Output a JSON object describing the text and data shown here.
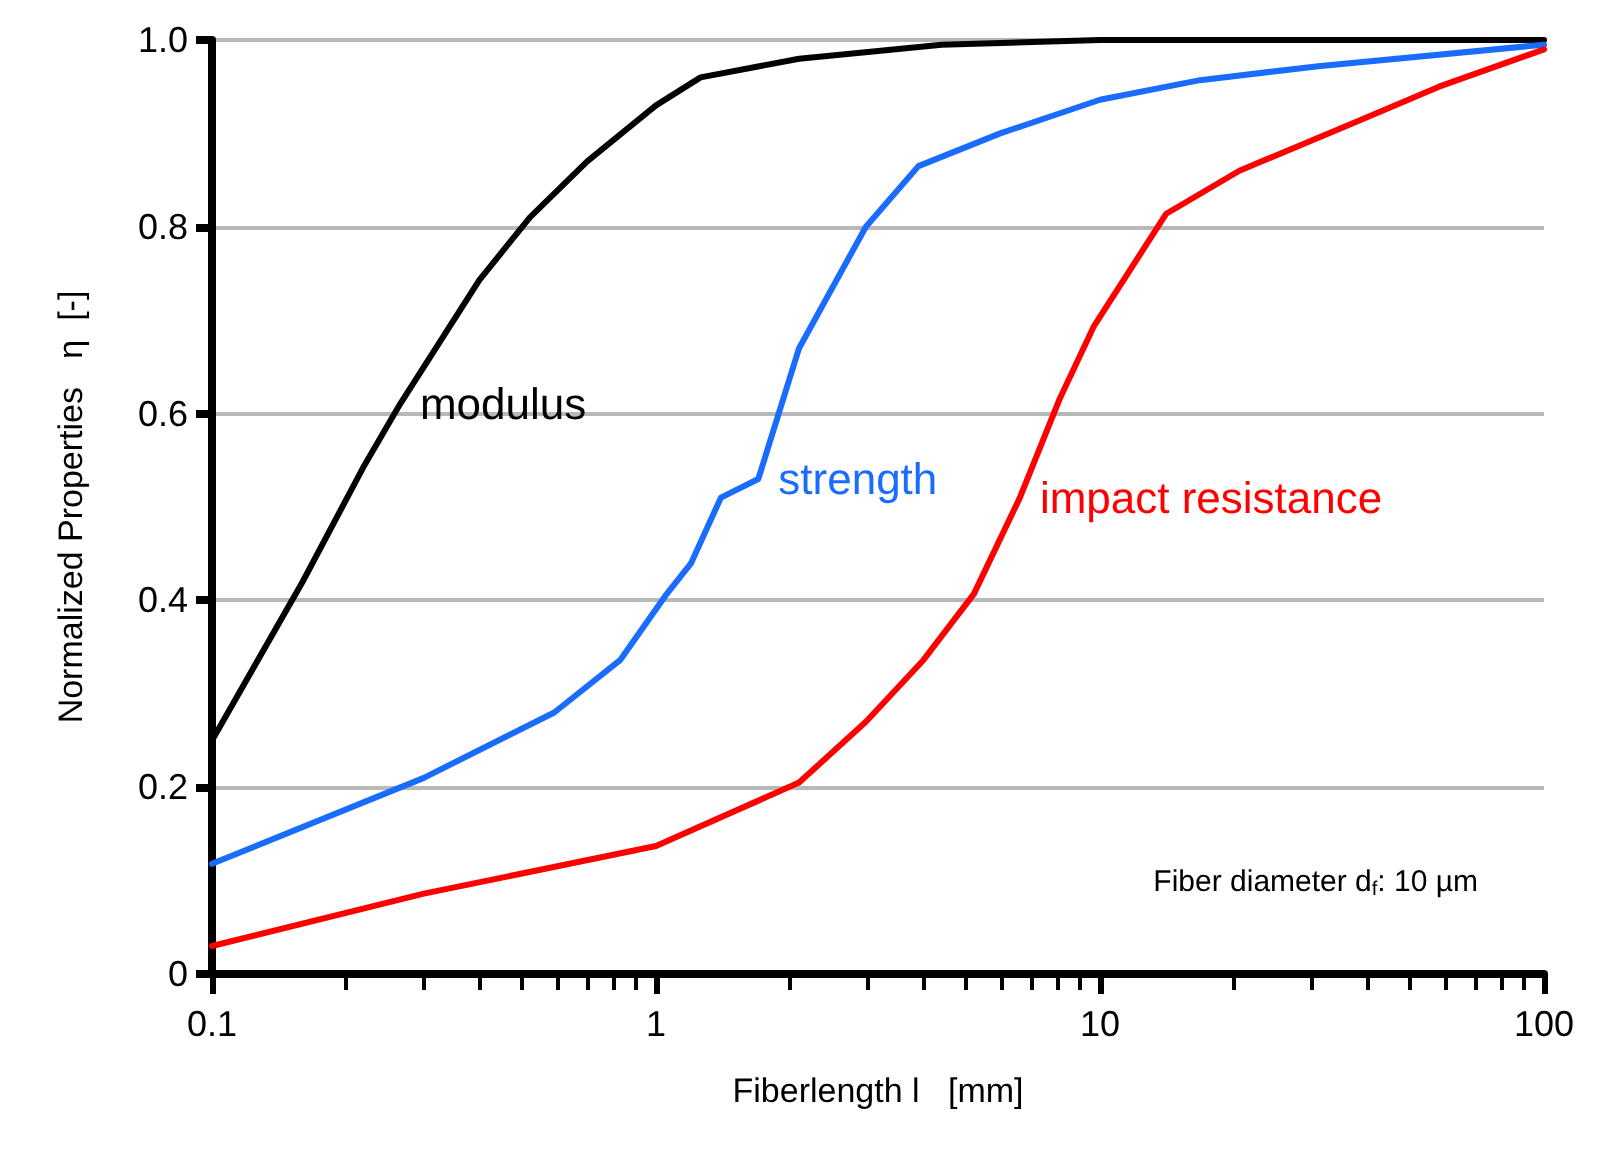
{
  "chart_data": {
    "type": "line",
    "xlabel": "Fiberlength l   [mm]",
    "ylabel": "Normalized Properties   η  [-]",
    "log": "x",
    "xlim": [
      0.1,
      100
    ],
    "xticks": [
      0.1,
      1,
      10,
      100
    ],
    "ylim": [
      0,
      1
    ],
    "yticks": [
      0,
      0.2,
      0.4,
      0.6,
      0.8,
      {
        "value": 1,
        "label": "1.0"
      }
    ],
    "grid": "y",
    "marker": "none",
    "line_style": "solid",
    "annotations": [
      "Fiber diameter d$_{f}$: 10 µm"
    ],
    "series": [
      {
        "name": "modulus",
        "color": "#000000",
        "x": [
          0.1,
          0.16,
          0.22,
          0.265,
          0.4,
          0.52,
          0.7,
          1,
          1.26,
          2.1,
          4.4,
          10,
          100
        ],
        "values": [
          0.25,
          0.42,
          0.544,
          0.61,
          0.743,
          0.81,
          0.87,
          0.93,
          0.96,
          0.98,
          0.995,
          1.0,
          1.0
        ]
      },
      {
        "name": "strength",
        "color": "#1a6cff",
        "x": [
          0.1,
          0.3,
          0.59,
          0.83,
          1.05,
          1.2,
          1.4,
          1.7,
          2.1,
          2.97,
          3.9,
          5.96,
          10,
          16.8,
          31,
          100
        ],
        "values": [
          0.118,
          0.21,
          0.28,
          0.336,
          0.405,
          0.44,
          0.51,
          0.53,
          0.67,
          0.8,
          0.865,
          0.9,
          0.936,
          0.957,
          0.972,
          0.995
        ]
      },
      {
        "name": "impact resistance",
        "color": "#ff0000",
        "x": [
          0.1,
          0.3,
          1,
          2.1,
          2.97,
          4,
          5.2,
          6.6,
          8.1,
          9.7,
          14.1,
          20.6,
          38.5,
          58,
          100
        ],
        "values": [
          0.03,
          0.086,
          0.137,
          0.205,
          0.27,
          0.336,
          0.407,
          0.51,
          0.615,
          0.694,
          0.814,
          0.86,
          0.914,
          0.95,
          0.99
        ]
      }
    ]
  }
}
